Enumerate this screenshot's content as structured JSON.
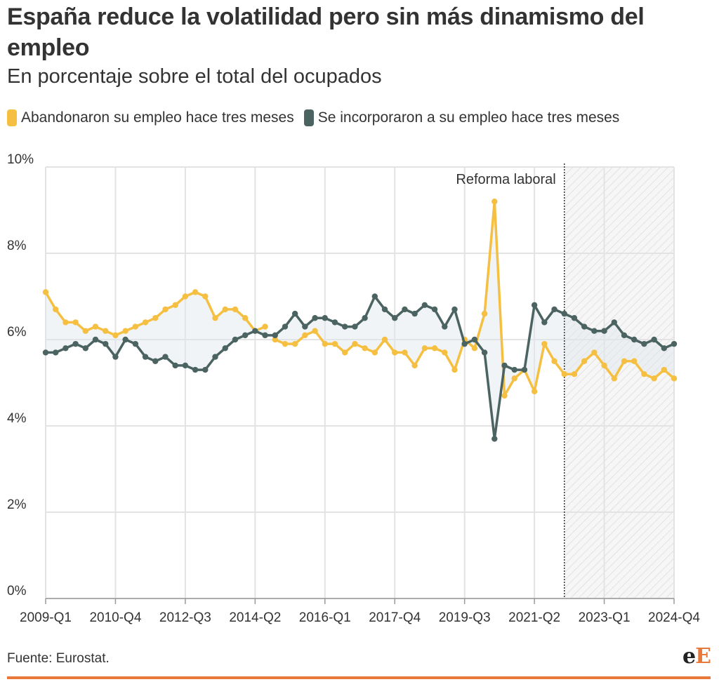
{
  "title": "España reduce la volatilidad pero sin más dinamismo del empleo",
  "subtitle": "En porcentaje sobre el total del ocupados",
  "source": "Fuente: Eurostat.",
  "logo": "eE",
  "colors": {
    "abandonaron": "#f5bf42",
    "incorporaron": "#4b6361",
    "accent": "#e8793a",
    "band": "#dfe6ee"
  },
  "chart_data": {
    "type": "line",
    "ylim": [
      0,
      10
    ],
    "yticks": [
      0,
      2,
      4,
      6,
      8,
      10
    ],
    "ytick_labels": [
      "0%",
      "2%",
      "4%",
      "6%",
      "8%",
      "10%"
    ],
    "x_start": "2009-Q1",
    "x_end": "2024-Q4",
    "xtick_labels": [
      "2009-Q1",
      "2010-Q4",
      "2012-Q3",
      "2014-Q2",
      "2016-Q1",
      "2017-Q4",
      "2019-Q3",
      "2021-Q2",
      "2023-Q1",
      "2024-Q4"
    ],
    "grid": true,
    "legend_position": "top",
    "annotation": {
      "label": "Reforma laboral",
      "at": "2022-Q1",
      "shaded_until": "2024-Q4"
    },
    "series": [
      {
        "name": "Abandonaron su empleo hace tres meses",
        "values": [
          7.1,
          6.7,
          6.4,
          6.4,
          6.2,
          6.3,
          6.2,
          6.1,
          6.2,
          6.3,
          6.4,
          6.5,
          6.7,
          6.8,
          7.0,
          7.1,
          7.0,
          6.5,
          6.7,
          6.7,
          6.5,
          6.2,
          6.3,
          6.0,
          5.9,
          5.9,
          6.1,
          6.2,
          5.9,
          5.9,
          5.7,
          5.9,
          5.8,
          5.7,
          6.0,
          5.7,
          5.7,
          5.4,
          5.8,
          5.8,
          5.7,
          5.3,
          6.0,
          5.8,
          6.6,
          9.2,
          4.7,
          5.1,
          5.3,
          4.8,
          5.9,
          5.5,
          5.2,
          5.2,
          5.5,
          5.7,
          5.4,
          5.1,
          5.5,
          5.5,
          5.2,
          5.1,
          5.3,
          5.1
        ],
        "gaps": [
          [
            22,
            23
          ]
        ]
      },
      {
        "name": "Se incorporaron a su empleo hace tres meses",
        "values": [
          5.7,
          5.7,
          5.8,
          5.9,
          5.8,
          6.0,
          5.9,
          5.6,
          6.0,
          5.9,
          5.6,
          5.5,
          5.6,
          5.4,
          5.4,
          5.3,
          5.3,
          5.6,
          5.8,
          6.0,
          6.1,
          6.2,
          6.1,
          6.1,
          6.3,
          6.6,
          6.3,
          6.5,
          6.5,
          6.4,
          6.3,
          6.3,
          6.5,
          7.0,
          6.7,
          6.5,
          6.7,
          6.6,
          6.8,
          6.7,
          6.3,
          6.7,
          5.9,
          6.0,
          5.7,
          3.7,
          5.4,
          5.3,
          5.3,
          6.8,
          6.4,
          6.7,
          6.6,
          6.5,
          6.3,
          6.2,
          6.2,
          6.4,
          6.1,
          6.0,
          5.9,
          6.0,
          5.8,
          5.9
        ]
      }
    ]
  }
}
